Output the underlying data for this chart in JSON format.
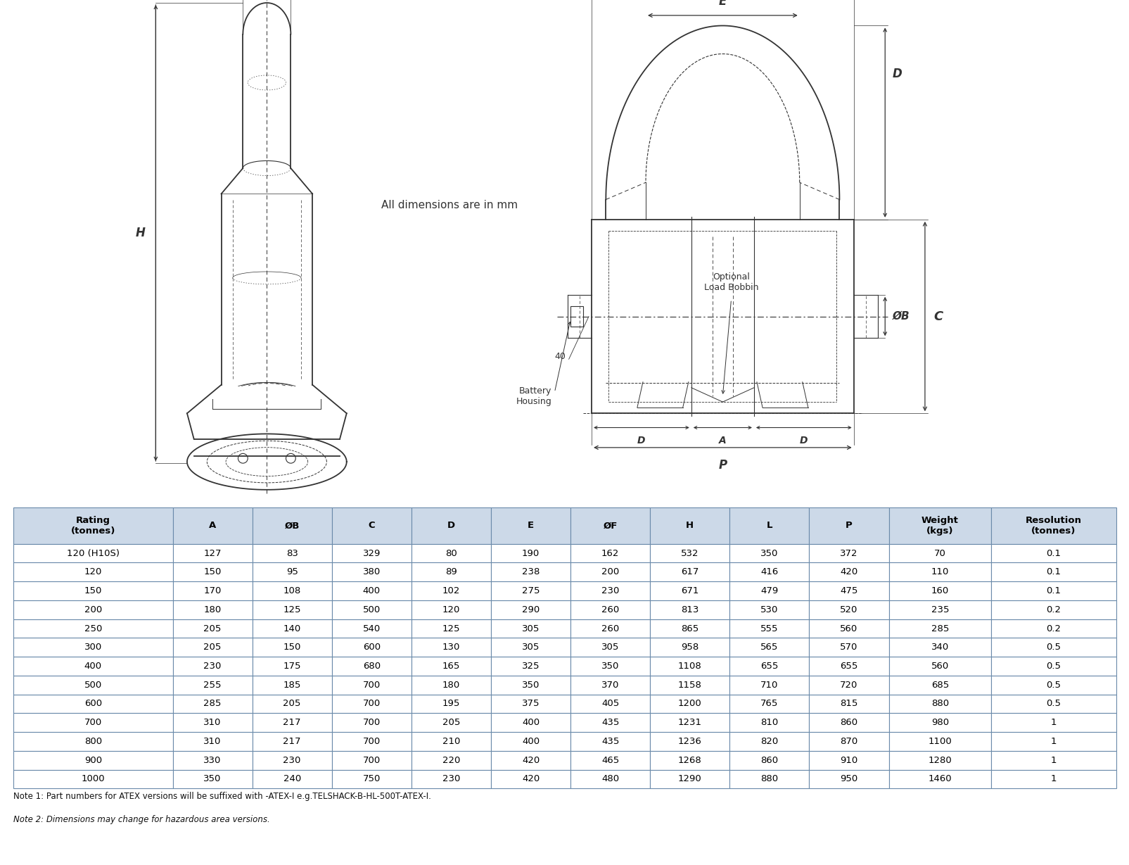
{
  "background_color": "#ffffff",
  "table_header_bg": "#ccd9e8",
  "table_row_bg": "#ffffff",
  "table_border_color": "#6a8aaa",
  "columns": [
    "Rating\n(tonnes)",
    "A",
    "ØB",
    "C",
    "D",
    "E",
    "ØF",
    "H",
    "L",
    "P",
    "Weight\n(kgs)",
    "Resolution\n(tonnes)"
  ],
  "col_widths": [
    1.4,
    0.7,
    0.7,
    0.7,
    0.7,
    0.7,
    0.7,
    0.7,
    0.7,
    0.7,
    0.9,
    1.1
  ],
  "rows": [
    [
      "120 (H10S)",
      "127",
      "83",
      "329",
      "80",
      "190",
      "162",
      "532",
      "350",
      "372",
      "70",
      "0.1"
    ],
    [
      "120",
      "150",
      "95",
      "380",
      "89",
      "238",
      "200",
      "617",
      "416",
      "420",
      "110",
      "0.1"
    ],
    [
      "150",
      "170",
      "108",
      "400",
      "102",
      "275",
      "230",
      "671",
      "479",
      "475",
      "160",
      "0.1"
    ],
    [
      "200",
      "180",
      "125",
      "500",
      "120",
      "290",
      "260",
      "813",
      "530",
      "520",
      "235",
      "0.2"
    ],
    [
      "250",
      "205",
      "140",
      "540",
      "125",
      "305",
      "260",
      "865",
      "555",
      "560",
      "285",
      "0.2"
    ],
    [
      "300",
      "205",
      "150",
      "600",
      "130",
      "305",
      "305",
      "958",
      "565",
      "570",
      "340",
      "0.5"
    ],
    [
      "400",
      "230",
      "175",
      "680",
      "165",
      "325",
      "350",
      "1108",
      "655",
      "655",
      "560",
      "0.5"
    ],
    [
      "500",
      "255",
      "185",
      "700",
      "180",
      "350",
      "370",
      "1158",
      "710",
      "720",
      "685",
      "0.5"
    ],
    [
      "600",
      "285",
      "205",
      "700",
      "195",
      "375",
      "405",
      "1200",
      "765",
      "815",
      "880",
      "0.5"
    ],
    [
      "700",
      "310",
      "217",
      "700",
      "205",
      "400",
      "435",
      "1231",
      "810",
      "860",
      "980",
      "1"
    ],
    [
      "800",
      "310",
      "217",
      "700",
      "210",
      "400",
      "435",
      "1236",
      "820",
      "870",
      "1100",
      "1"
    ],
    [
      "900",
      "330",
      "230",
      "700",
      "220",
      "420",
      "465",
      "1268",
      "860",
      "910",
      "1280",
      "1"
    ],
    [
      "1000",
      "350",
      "240",
      "750",
      "230",
      "420",
      "480",
      "1290",
      "880",
      "950",
      "1460",
      "1"
    ]
  ],
  "note1": "Note 1: Part numbers for ATEX versions will be suffixed with -ATEX-I e.g.TELSHACK-B-HL-500T-ATEX-I.",
  "note2": "Note 2: Dimensions may change for hazardous area versions.",
  "all_dims_text": "All dimensions are in mm"
}
